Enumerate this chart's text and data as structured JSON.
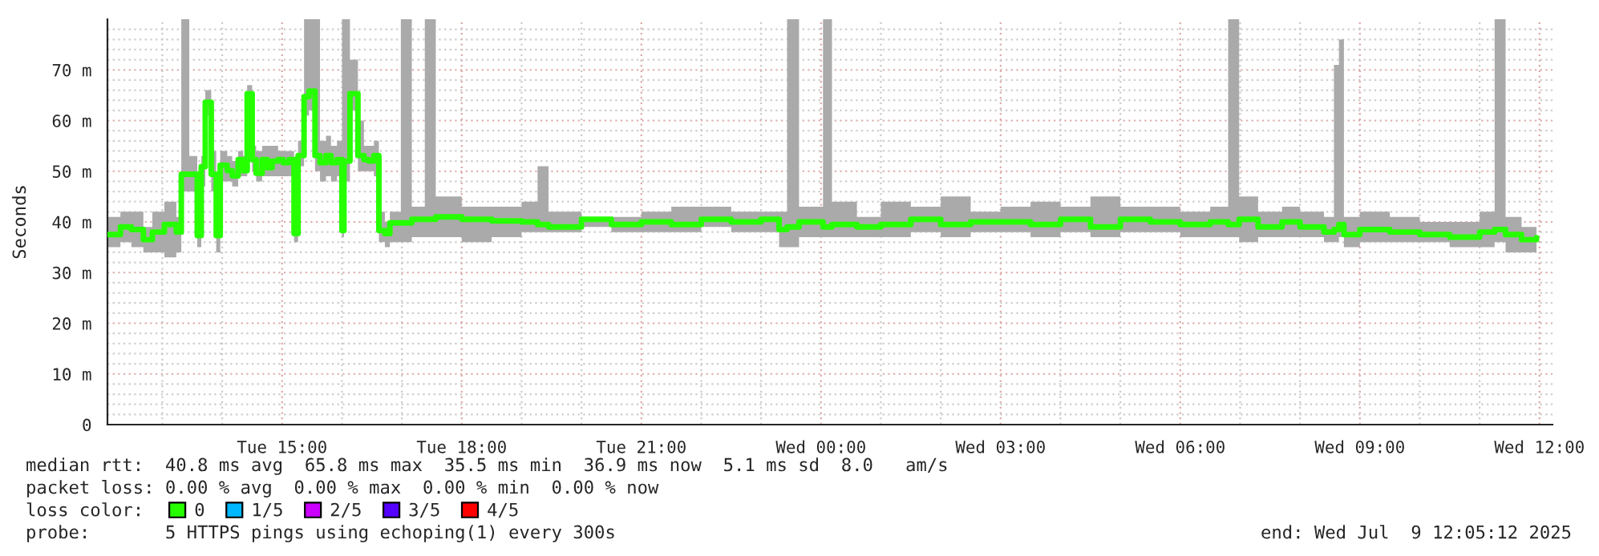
{
  "chart_data": {
    "type": "step",
    "ylabel": "Seconds",
    "legend_title": "loss color:",
    "legend": "bottom left",
    "grid": true,
    "xlim": [
      "2025-07-08T12:05",
      "2025-07-09T12:13"
    ],
    "ylim": [
      0,
      80
    ],
    "xticks": [
      {
        "value": "2025-07-08T15:00",
        "label": "Tue 15:00"
      },
      {
        "value": "2025-07-08T18:00",
        "label": "Tue 18:00"
      },
      {
        "value": "2025-07-08T21:00",
        "label": "Tue 21:00"
      },
      {
        "value": "2025-07-09T00:00",
        "label": "Wed 00:00"
      },
      {
        "value": "2025-07-09T03:00",
        "label": "Wed 03:00"
      },
      {
        "value": "2025-07-09T06:00",
        "label": "Wed 06:00"
      },
      {
        "value": "2025-07-09T09:00",
        "label": "Wed 09:00"
      },
      {
        "value": "2025-07-09T12:00",
        "label": "Wed 12:00"
      }
    ],
    "yticks": [
      0,
      {
        "value": 10,
        "label": "10 m"
      },
      {
        "value": 20,
        "label": "20 m"
      },
      {
        "value": 30,
        "label": "30 m"
      },
      {
        "value": 40,
        "label": "40 m"
      },
      {
        "value": 50,
        "label": "50 m"
      },
      {
        "value": 60,
        "label": "60 m"
      },
      {
        "value": 70,
        "label": "70 m"
      }
    ],
    "series": [
      {
        "name": "0",
        "color": "#26ff00",
        "x": [
          "2025-07-08T12:05",
          "2025-07-08T12:18",
          "2025-07-08T12:29",
          "2025-07-08T12:41",
          "2025-07-08T12:50",
          "2025-07-08T13:02",
          "2025-07-08T13:14",
          "2025-07-08T13:19",
          "2025-07-08T13:27",
          "2025-07-08T13:35",
          "2025-07-08T13:39",
          "2025-07-08T13:43",
          "2025-07-08T13:49",
          "2025-07-08T13:54",
          "2025-07-08T13:58",
          "2025-07-08T14:05",
          "2025-07-08T14:10",
          "2025-07-08T14:16",
          "2025-07-08T14:21",
          "2025-07-08T14:25",
          "2025-07-08T14:30",
          "2025-07-08T14:34",
          "2025-07-08T14:40",
          "2025-07-08T14:45",
          "2025-07-08T14:50",
          "2025-07-08T14:56",
          "2025-07-08T15:01",
          "2025-07-08T15:07",
          "2025-07-08T15:12",
          "2025-07-08T15:16",
          "2025-07-08T15:22",
          "2025-07-08T15:27",
          "2025-07-08T15:33",
          "2025-07-08T15:38",
          "2025-07-08T15:44",
          "2025-07-08T15:49",
          "2025-07-08T15:55",
          "2025-07-08T16:00",
          "2025-07-08T16:02",
          "2025-07-08T16:08",
          "2025-07-08T16:16",
          "2025-07-08T16:22",
          "2025-07-08T16:27",
          "2025-07-08T16:32",
          "2025-07-08T16:37",
          "2025-07-08T16:43",
          "2025-07-08T16:48",
          "2025-07-08T16:59",
          "2025-07-08T17:10",
          "2025-07-08T17:23",
          "2025-07-08T17:34",
          "2025-07-08T18:00",
          "2025-07-08T18:30",
          "2025-07-08T19:00",
          "2025-07-08T19:16",
          "2025-07-08T19:27",
          "2025-07-08T20:00",
          "2025-07-08T20:30",
          "2025-07-08T21:00",
          "2025-07-08T21:30",
          "2025-07-08T22:00",
          "2025-07-08T22:30",
          "2025-07-08T23:00",
          "2025-07-08T23:18",
          "2025-07-08T23:26",
          "2025-07-08T23:38",
          "2025-07-09T00:02",
          "2025-07-09T00:11",
          "2025-07-09T00:36",
          "2025-07-09T01:00",
          "2025-07-09T01:30",
          "2025-07-09T02:00",
          "2025-07-09T02:30",
          "2025-07-09T03:00",
          "2025-07-09T03:30",
          "2025-07-09T04:00",
          "2025-07-09T04:30",
          "2025-07-09T05:00",
          "2025-07-09T05:30",
          "2025-07-09T06:00",
          "2025-07-09T06:30",
          "2025-07-09T06:48",
          "2025-07-09T06:59",
          "2025-07-09T07:18",
          "2025-07-09T07:42",
          "2025-07-09T08:00",
          "2025-07-09T08:24",
          "2025-07-09T08:34",
          "2025-07-09T08:39",
          "2025-07-09T08:44",
          "2025-07-09T09:00",
          "2025-07-09T09:30",
          "2025-07-09T10:00",
          "2025-07-09T10:30",
          "2025-07-09T11:00",
          "2025-07-09T11:15",
          "2025-07-09T11:26",
          "2025-07-09T11:42",
          "2025-07-09T11:57"
        ],
        "values": [
          37.5,
          39,
          38.5,
          36.5,
          38,
          39.5,
          38,
          49.4,
          49.4,
          37.3,
          50.9,
          63.6,
          49.4,
          37.3,
          51.2,
          50.1,
          49.1,
          52.3,
          50.1,
          65.3,
          52.3,
          49.6,
          52.3,
          50.7,
          52,
          52.3,
          51.7,
          52.3,
          37.7,
          53.1,
          64.7,
          65.8,
          53.1,
          51.7,
          53.1,
          51.7,
          52.3,
          38.3,
          52,
          65.3,
          53.1,
          52.3,
          52,
          53.1,
          38.3,
          37.7,
          39.8,
          39.8,
          40.5,
          40.5,
          41,
          40.5,
          40.2,
          40,
          39.5,
          39,
          40.5,
          39.5,
          40,
          39.5,
          40.5,
          40,
          40.5,
          38.5,
          39,
          40,
          39,
          39.5,
          39,
          39.5,
          40.5,
          39.5,
          40,
          40,
          39.5,
          40.5,
          39,
          40.5,
          40,
          39.5,
          40,
          39.5,
          40.5,
          39,
          40,
          39,
          38,
          38.5,
          39.5,
          37.5,
          38.5,
          38,
          37.5,
          37,
          38,
          38.5,
          37.5,
          36.5,
          36.9
        ],
        "lower": [
          35,
          36,
          35,
          34,
          34,
          33,
          34,
          46,
          46,
          35,
          47,
          61,
          46,
          34,
          48,
          48,
          47,
          49,
          49,
          63,
          50,
          48,
          49,
          49,
          49,
          49,
          49,
          49,
          36,
          51,
          61,
          62,
          50,
          48,
          49,
          48,
          49,
          37,
          48,
          62,
          50,
          50,
          50,
          49,
          36,
          35,
          36,
          36,
          37,
          37,
          37,
          36,
          37,
          38,
          38,
          38,
          39,
          38,
          38,
          38,
          39,
          38,
          38,
          35,
          35,
          37,
          37,
          37,
          37,
          37,
          38,
          37,
          38,
          38,
          37,
          38,
          37,
          38,
          38,
          37,
          37,
          37,
          36,
          37,
          37,
          37,
          36,
          36,
          37,
          35,
          36,
          36,
          36,
          35,
          35,
          36,
          34,
          34,
          35
        ],
        "upper": [
          41,
          42,
          42,
          39,
          42,
          44,
          41,
          80,
          53,
          39,
          53,
          66,
          54,
          40,
          54,
          53,
          52,
          54,
          53,
          67,
          55,
          54,
          55,
          55,
          55,
          54,
          54,
          54,
          40,
          56,
          80,
          80,
          80,
          56,
          57,
          55,
          56,
          80,
          80,
          72,
          60,
          55,
          55,
          56,
          42,
          40,
          42,
          80,
          43,
          80,
          45,
          43,
          43,
          44,
          51,
          42,
          41,
          41,
          42,
          43,
          43,
          42,
          42,
          42,
          80,
          43,
          80,
          44,
          41,
          44,
          43,
          45,
          42,
          43,
          44,
          43,
          45,
          43,
          43,
          42,
          43,
          80,
          45,
          42,
          43,
          42,
          41,
          71,
          76,
          41,
          42,
          41,
          40,
          40,
          42,
          80,
          41,
          39,
          39
        ]
      },
      {
        "name": "1/5",
        "color": "#00b8ff"
      },
      {
        "name": "2/5",
        "color": "#cc00ff"
      },
      {
        "name": "3/5",
        "color": "#5500ff"
      },
      {
        "name": "4/5",
        "color": "#ff0000"
      }
    ],
    "annotations": [
      "median rtt:  40.8 ms avg  65.8 ms max  35.5 ms min  36.9 ms now  5.1 ms sd  8.0   am/s",
      "packet loss: 0.00 % avg  0.00 % max  0.00 % min  0.00 % now",
      "probe:       5 HTTPS pings using echoping(1) every 300s",
      "end: Wed Jul  9 12:05:12 2025"
    ]
  }
}
